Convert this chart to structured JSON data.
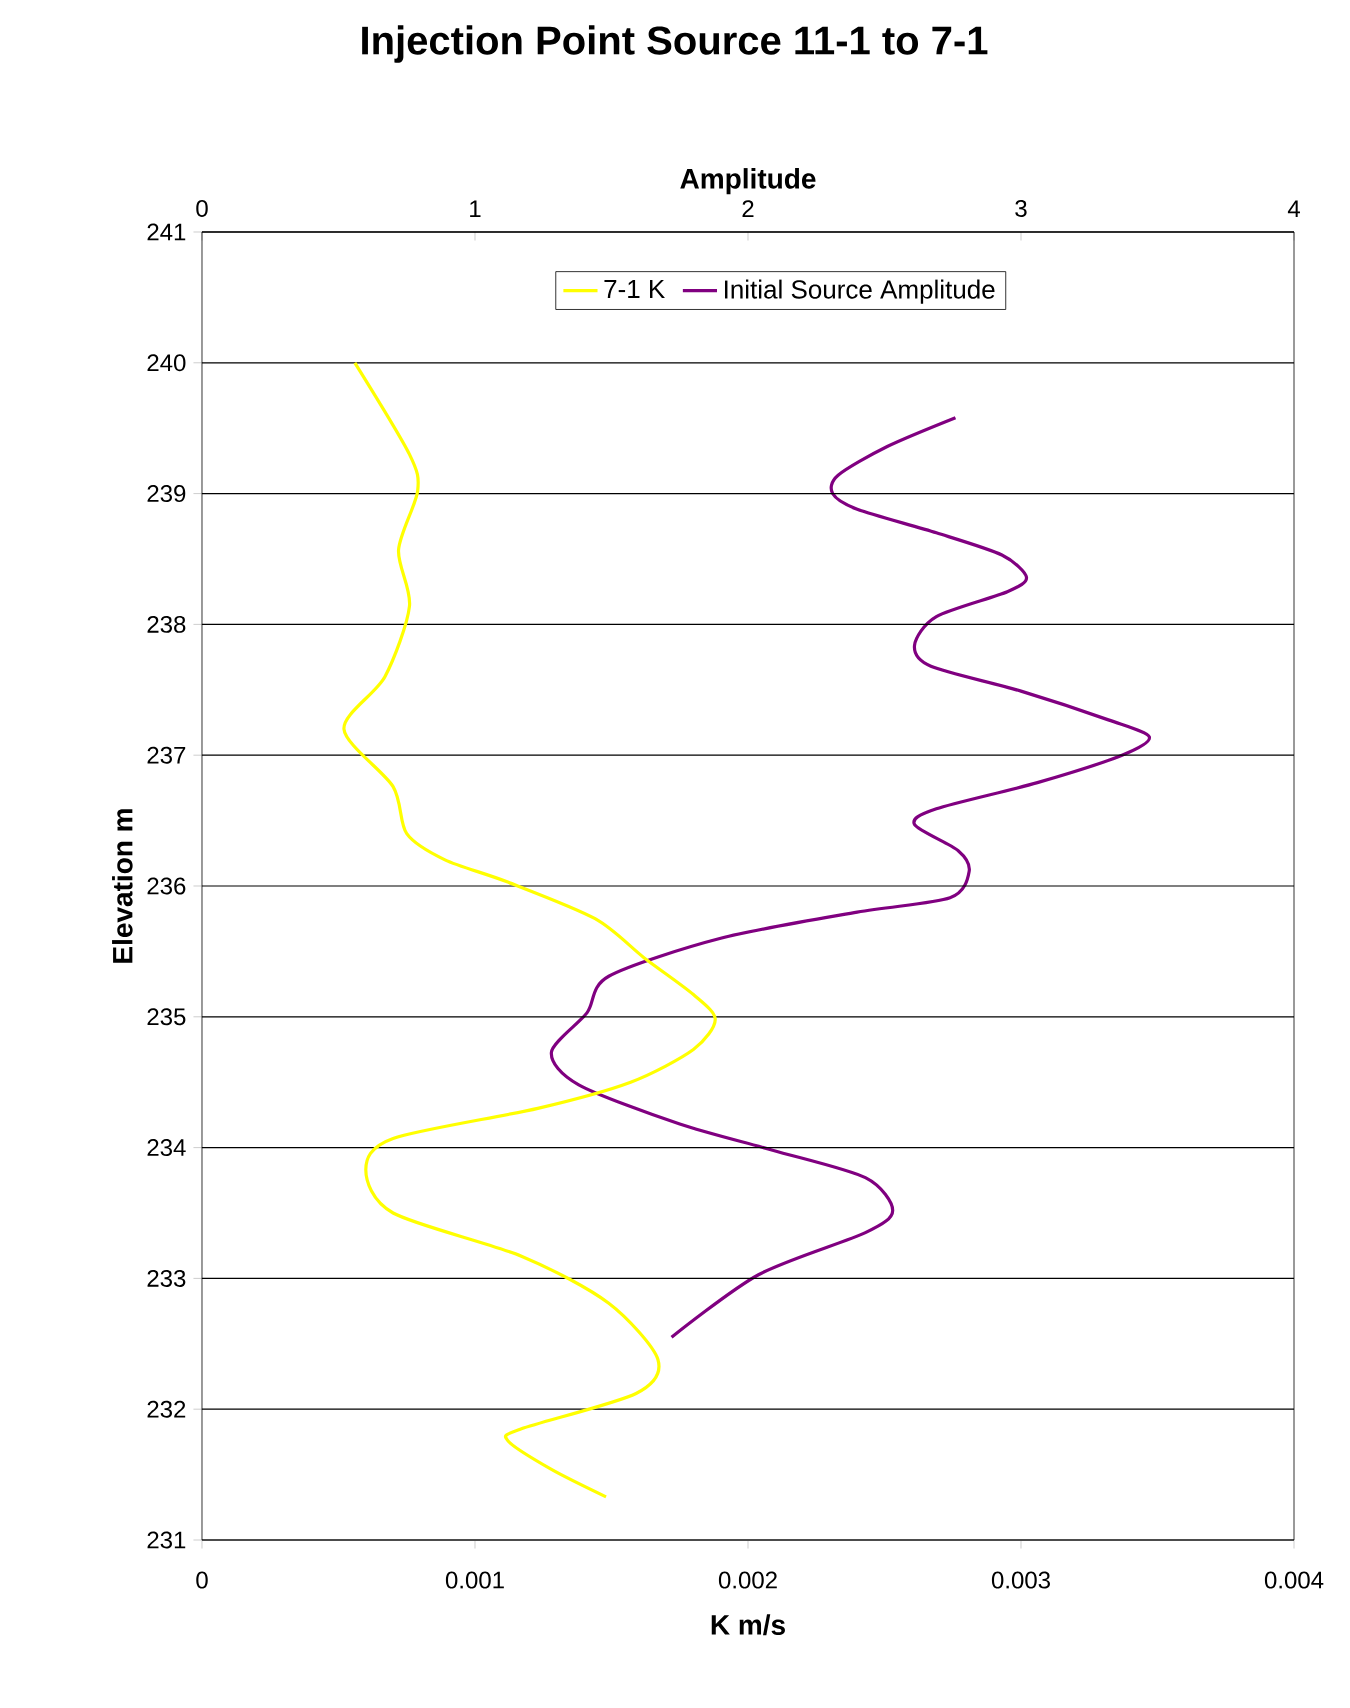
{
  "chart_data": {
    "type": "line",
    "title": "Injection Point Source 11-1 to 7-1",
    "xlabel": "K m/s",
    "x2label": "Amplitude",
    "ylabel": "Elevation m",
    "xlim": [
      0,
      0.004
    ],
    "xticks": [
      0,
      0.001,
      0.002,
      0.003,
      0.004
    ],
    "x2lim": [
      0,
      4
    ],
    "x2ticks": [
      0,
      1,
      2,
      3,
      4
    ],
    "ylim": [
      231,
      241
    ],
    "yticks": [
      231,
      232,
      233,
      234,
      235,
      236,
      237,
      238,
      239,
      240,
      241
    ],
    "grid": "y",
    "legend": "top",
    "marker": "none",
    "line_style": "solid",
    "series": [
      {
        "name": "7-1 K",
        "color": "#ffff00",
        "x": [
          0.00056,
          0.00076,
          0.00079,
          0.00072,
          0.00076,
          0.00067,
          0.00052,
          0.0007,
          0.00075,
          0.00089,
          0.00112,
          0.00144,
          0.00162,
          0.0018,
          0.00188,
          0.0018,
          0.00157,
          0.00123,
          0.0007,
          0.0006,
          0.0007,
          0.00117,
          0.00149,
          0.00167,
          0.00159,
          0.00117,
          0.00112,
          0.00128,
          0.00148
        ],
        "values": [
          240.0,
          239.3,
          239.02,
          238.57,
          238.14,
          237.6,
          237.2,
          236.76,
          236.4,
          236.2,
          236.03,
          235.75,
          235.45,
          235.17,
          234.98,
          234.75,
          234.5,
          234.3,
          234.07,
          233.83,
          233.5,
          233.17,
          232.81,
          232.38,
          232.12,
          231.85,
          231.76,
          231.54,
          231.33
        ]
      },
      {
        "name": "Initial Source Amplitude",
        "color": "#800080",
        "axis": "x2",
        "x": [
          2.76,
          2.51,
          2.33,
          2.31,
          2.4,
          2.69,
          2.93,
          3.02,
          2.95,
          2.69,
          2.61,
          2.67,
          3.0,
          3.32,
          3.47,
          3.37,
          3.06,
          2.69,
          2.61,
          2.77,
          2.81,
          2.74,
          2.4,
          1.9,
          1.49,
          1.41,
          1.28,
          1.38,
          1.75,
          2.09,
          2.43,
          2.53,
          2.43,
          2.04,
          1.72
        ],
        "values": [
          239.58,
          239.36,
          239.14,
          239.0,
          238.88,
          238.7,
          238.53,
          238.36,
          238.25,
          238.06,
          237.84,
          237.68,
          237.49,
          237.27,
          237.14,
          237.0,
          236.79,
          236.59,
          236.47,
          236.27,
          236.11,
          235.91,
          235.8,
          235.6,
          235.31,
          235.03,
          234.73,
          234.48,
          234.18,
          233.98,
          233.77,
          233.52,
          233.35,
          233.03,
          232.55
        ]
      }
    ]
  }
}
